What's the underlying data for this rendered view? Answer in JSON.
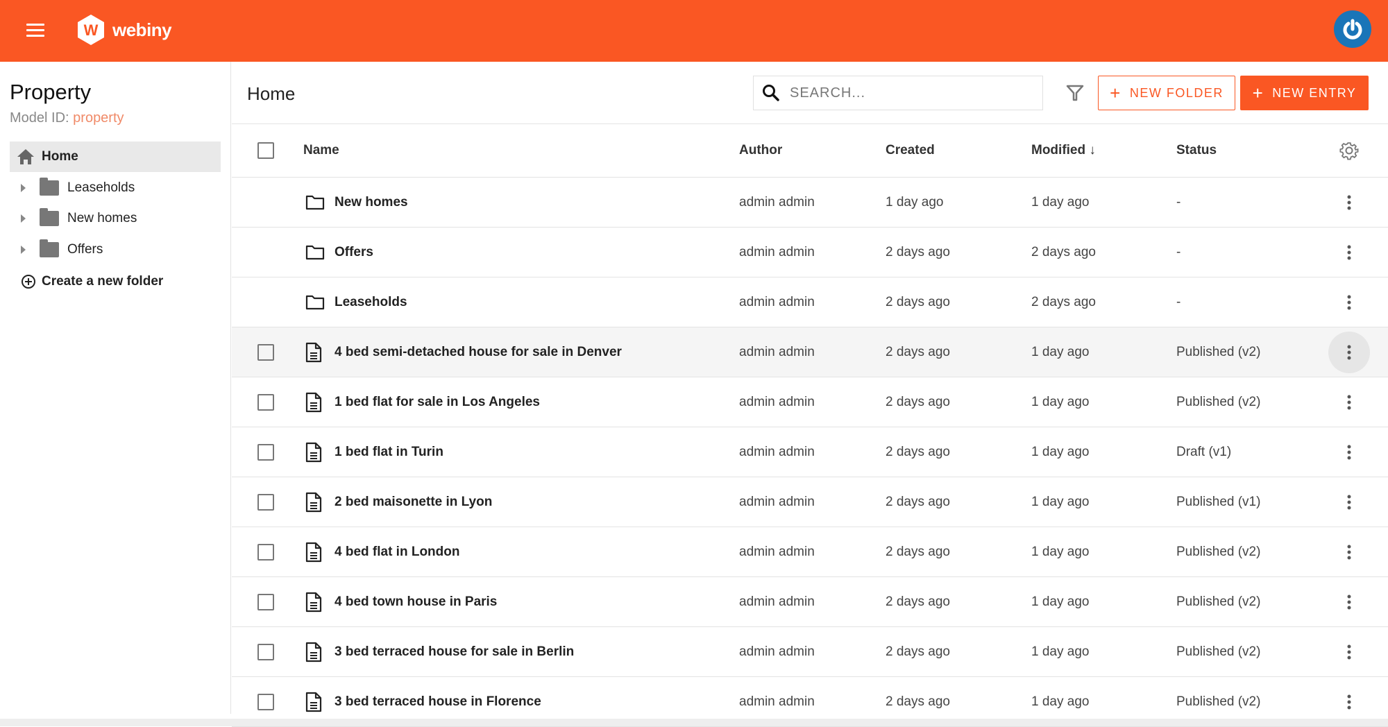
{
  "header": {
    "brand": "webiny",
    "accent": "#fa5723",
    "avatar_color": "#1a75b8"
  },
  "sidebar": {
    "title": "Property",
    "model_id_label": "Model ID:",
    "model_id": "property",
    "home": "Home",
    "folders": [
      {
        "label": "Leaseholds"
      },
      {
        "label": "New homes"
      },
      {
        "label": "Offers"
      }
    ],
    "create_folder": "Create a new folder"
  },
  "main": {
    "title": "Home",
    "search_placeholder": "SEARCH...",
    "new_folder": "NEW FOLDER",
    "new_entry": "NEW ENTRY",
    "columns": {
      "name": "Name",
      "author": "Author",
      "created": "Created",
      "modified": "Modified",
      "status": "Status"
    },
    "sort": {
      "column": "Modified",
      "direction": "descending"
    },
    "rows": [
      {
        "type": "folder",
        "name": "New homes",
        "author": "admin admin",
        "created": "1 day ago",
        "modified": "1 day ago",
        "status": "-"
      },
      {
        "type": "folder",
        "name": "Offers",
        "author": "admin admin",
        "created": "2 days ago",
        "modified": "2 days ago",
        "status": "-"
      },
      {
        "type": "folder",
        "name": "Leaseholds",
        "author": "admin admin",
        "created": "2 days ago",
        "modified": "2 days ago",
        "status": "-"
      },
      {
        "type": "entry",
        "name": "4 bed semi-detached house for sale in Denver",
        "author": "admin admin",
        "created": "2 days ago",
        "modified": "1 day ago",
        "status": "Published (v2)",
        "hovered": true
      },
      {
        "type": "entry",
        "name": "1 bed flat for sale in Los Angeles",
        "author": "admin admin",
        "created": "2 days ago",
        "modified": "1 day ago",
        "status": "Published (v2)"
      },
      {
        "type": "entry",
        "name": "1 bed flat in Turin",
        "author": "admin admin",
        "created": "2 days ago",
        "modified": "1 day ago",
        "status": "Draft (v1)"
      },
      {
        "type": "entry",
        "name": "2 bed maisonette in Lyon",
        "author": "admin admin",
        "created": "2 days ago",
        "modified": "1 day ago",
        "status": "Published (v1)"
      },
      {
        "type": "entry",
        "name": "4 bed flat in London",
        "author": "admin admin",
        "created": "2 days ago",
        "modified": "1 day ago",
        "status": "Published (v2)"
      },
      {
        "type": "entry",
        "name": "4 bed town house in Paris",
        "author": "admin admin",
        "created": "2 days ago",
        "modified": "1 day ago",
        "status": "Published (v2)"
      },
      {
        "type": "entry",
        "name": "3 bed terraced house for sale in Berlin",
        "author": "admin admin",
        "created": "2 days ago",
        "modified": "1 day ago",
        "status": "Published (v2)"
      },
      {
        "type": "entry",
        "name": "3 bed terraced house in Florence",
        "author": "admin admin",
        "created": "2 days ago",
        "modified": "1 day ago",
        "status": "Published (v2)"
      }
    ]
  }
}
